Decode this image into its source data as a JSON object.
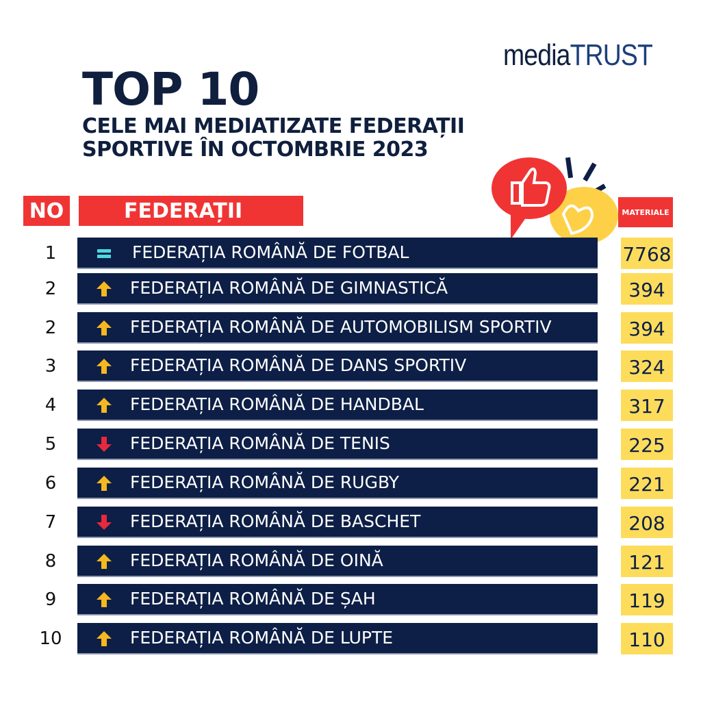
{
  "logo": {
    "prefix": "media",
    "suffix": "TRUST"
  },
  "title": "TOP 10",
  "subtitle_line1": "CELE MAI MEDIATIZATE FEDERAȚII",
  "subtitle_line2": "SPORTIVE ÎN OCTOMBRIE 2023",
  "headers": {
    "no": "NO",
    "federatii": "FEDERAȚII",
    "materiale": "MATERIALE"
  },
  "colors": {
    "navy": "#0d1f46",
    "red": "#f03434",
    "yellow": "#fddc5c",
    "up": "#f5b820",
    "down": "#e8283c",
    "equal": "#4dd8e0"
  },
  "rows": [
    {
      "no": "1",
      "trend": "equal",
      "name": "FEDERAȚIA ROMÂNĂ DE FOTBAL",
      "value": "7768"
    },
    {
      "no": "2",
      "trend": "up",
      "name": "FEDERAȚIA ROMÂNĂ DE GIMNASTICĂ",
      "value": "394"
    },
    {
      "no": "2",
      "trend": "up",
      "name": "FEDERAȚIA ROMÂNĂ DE AUTOMOBILISM SPORTIV",
      "value": "394"
    },
    {
      "no": "3",
      "trend": "up",
      "name": "FEDERAȚIA ROMÂNĂ DE DANS SPORTIV",
      "value": "324"
    },
    {
      "no": "4",
      "trend": "up",
      "name": "FEDERAȚIA ROMÂNĂ DE HANDBAL",
      "value": "317"
    },
    {
      "no": "5",
      "trend": "down",
      "name": "FEDERAȚIA ROMÂNĂ DE TENIS",
      "value": "225"
    },
    {
      "no": "6",
      "trend": "up",
      "name": "FEDERAȚIA ROMÂNĂ DE RUGBY",
      "value": "221"
    },
    {
      "no": "7",
      "trend": "down",
      "name": "FEDERAȚIA ROMÂNĂ DE BASCHET",
      "value": "208"
    },
    {
      "no": "8",
      "trend": "up",
      "name": "FEDERAȚIA ROMÂNĂ DE OINĂ",
      "value": "121"
    },
    {
      "no": "9",
      "trend": "up",
      "name": "FEDERAȚIA ROMÂNĂ DE ȘAH",
      "value": "119"
    },
    {
      "no": "10",
      "trend": "up",
      "name": "FEDERAȚIA ROMÂNĂ DE LUPTE",
      "value": "110"
    }
  ]
}
